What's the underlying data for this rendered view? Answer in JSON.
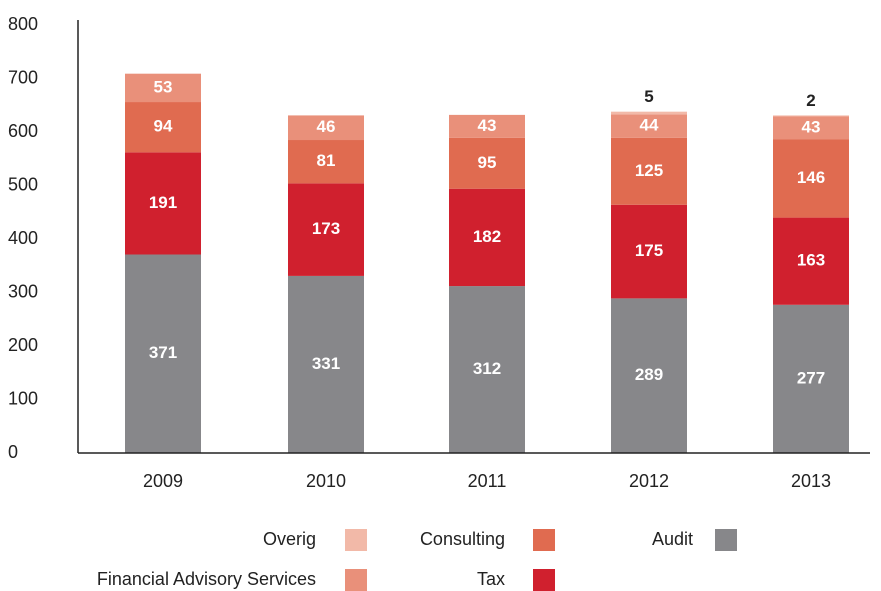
{
  "chart_data": {
    "type": "stacked_bar",
    "categories": [
      "2009",
      "2010",
      "2011",
      "2012",
      "2013"
    ],
    "series": [
      {
        "name": "Audit",
        "color": "#87878a",
        "values": [
          371,
          331,
          312,
          289,
          277
        ]
      },
      {
        "name": "Tax",
        "color": "#d0202e",
        "values": [
          191,
          173,
          182,
          175,
          163
        ]
      },
      {
        "name": "Consulting",
        "color": "#e06b50",
        "values": [
          94,
          81,
          95,
          125,
          146
        ]
      },
      {
        "name": "Financial Advisory Services",
        "color": "#e9907a",
        "values": [
          53,
          46,
          43,
          44,
          43
        ]
      },
      {
        "name": "Overig",
        "color": "#f2b9a8",
        "values": [
          null,
          null,
          null,
          5,
          2
        ]
      }
    ],
    "ylim": [
      0,
      800
    ],
    "yticks": [
      0,
      100,
      200,
      300,
      400,
      500,
      600,
      700,
      800
    ],
    "grid": false
  }
}
